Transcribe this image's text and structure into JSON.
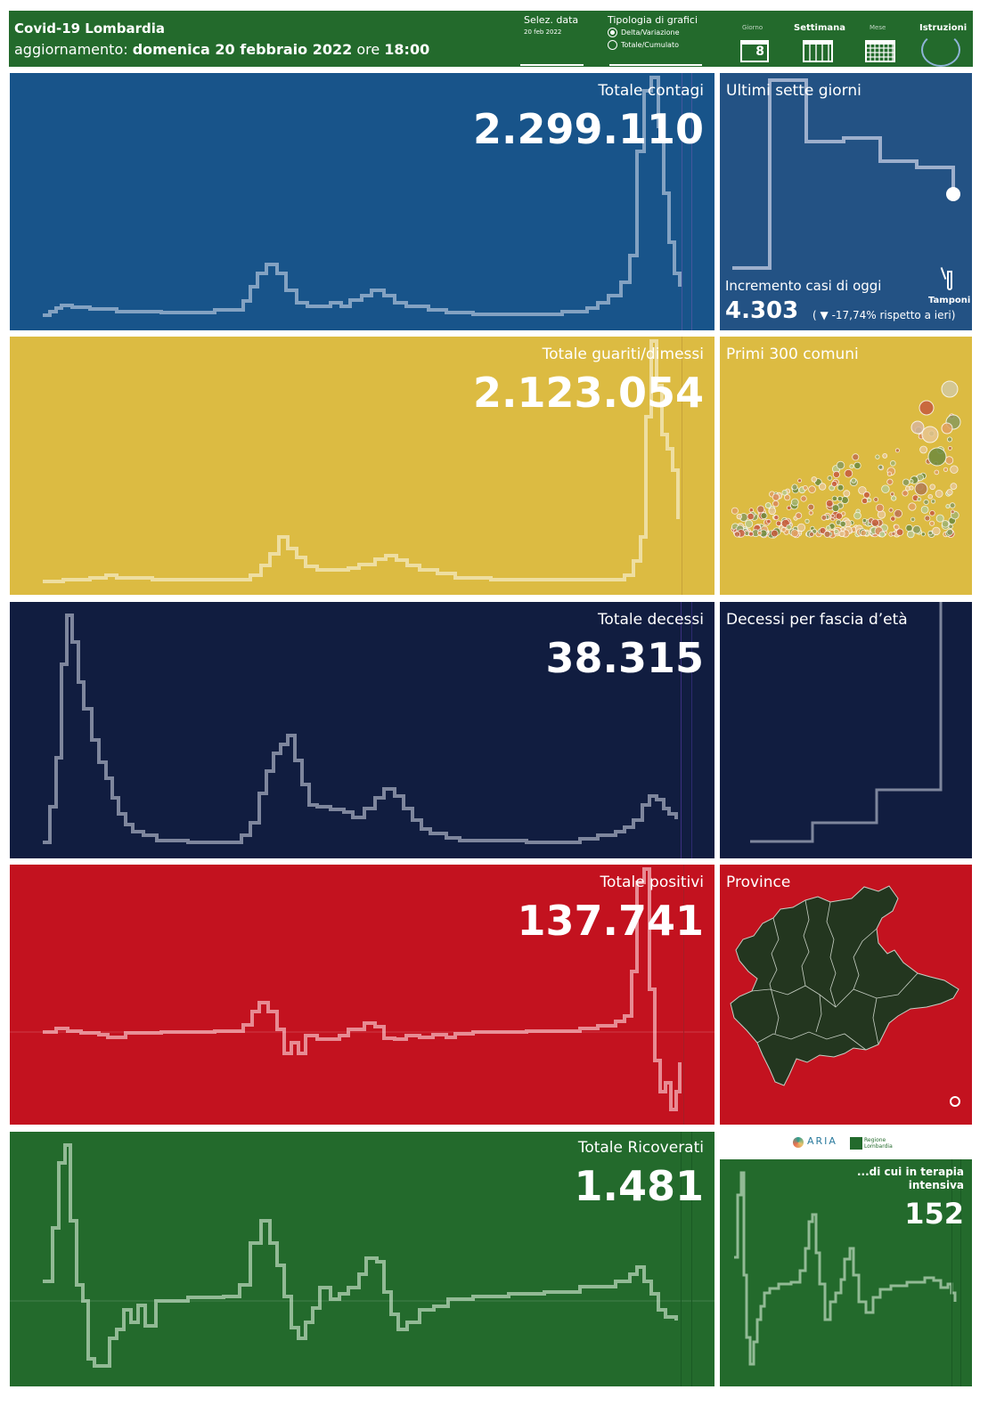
{
  "header": {
    "title": "Covid-19 Lombardia",
    "update_prefix": "aggiornamento:",
    "update_date": "domenica 20 febbraio 2022",
    "update_ore": "ore",
    "update_time": "18:00",
    "sel_date_label": "Selez. data",
    "sel_date_value": "20 feb 2022",
    "tipologia_label": "Tipologia di grafici",
    "option_delta": "Delta/Variazione",
    "option_totale": "Totale/Cumulato",
    "giorno_label": "Giorno",
    "giorno_value": "8",
    "settimana_label": "Settimana",
    "mese_label": "Mese",
    "istruzioni_label": "Istruzioni"
  },
  "colors": {
    "header_green": "#236a2c",
    "contagi_blue": "#18548a",
    "sette_giorni_blue": "#235284",
    "guariti_yellow": "#dcbb42",
    "decessi_navy": "#111d40",
    "positivi_red": "#c3121f",
    "ricoverati_green": "#236a2c"
  },
  "panels": {
    "contagi": {
      "title": "Totale contagi",
      "value": "2.299.110"
    },
    "sette_giorni": {
      "title": "Ultimi sette giorni",
      "increment_label": "Incremento casi di oggi",
      "increment_value": "4.303",
      "increment_open": "(",
      "increment_arrow": "▼",
      "increment_change": "-17,74% rispetto a  ieri)",
      "tamponi_label": "Tamponi"
    },
    "guariti": {
      "title": "Totale guariti/dimessi",
      "value": "2.123.054"
    },
    "comuni": {
      "title": "Primi 300 comuni"
    },
    "decessi": {
      "title": "Totale decessi",
      "value": "38.315"
    },
    "fascia_eta": {
      "title": "Decessi per fascia d’età"
    },
    "positivi": {
      "title": "Totale positivi",
      "value": "137.741"
    },
    "province": {
      "title": "Province"
    },
    "ricoverati": {
      "title": "Totale Ricoverati",
      "value": "1.481"
    },
    "terapia": {
      "title_line1": "...di cui in terapia",
      "title_line2": "intensiva",
      "value": "152"
    },
    "logos": {
      "aria": "ARIA",
      "regione": "Regione Lombardia"
    }
  }
}
